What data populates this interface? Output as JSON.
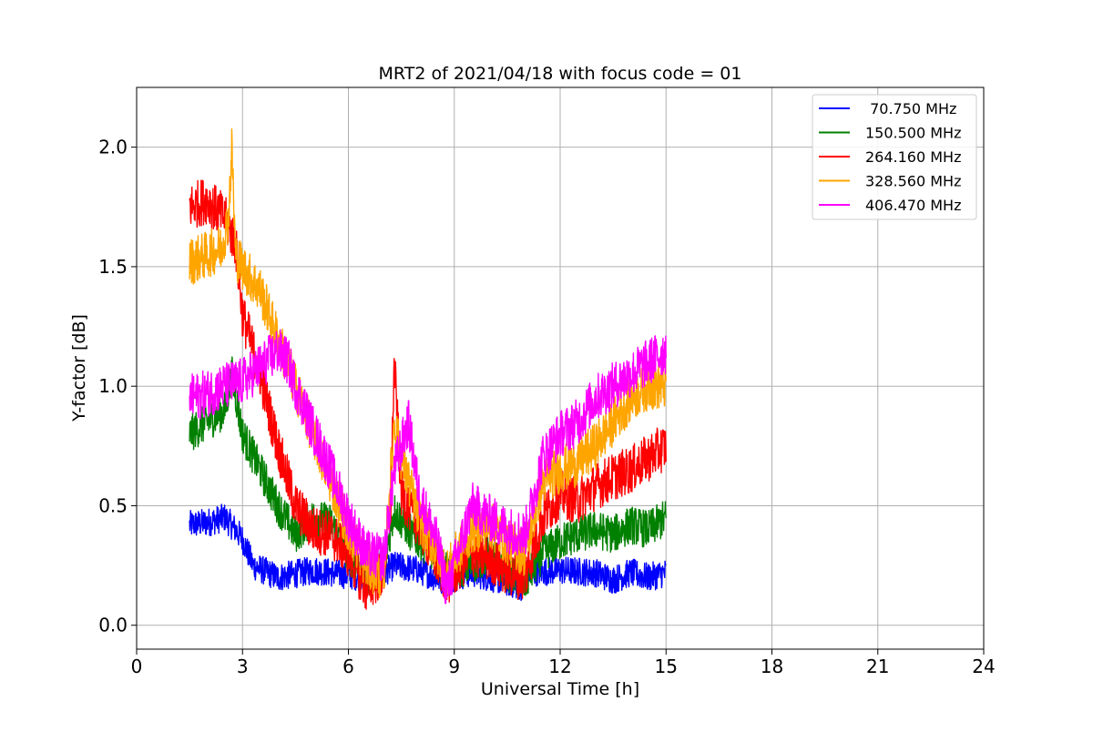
{
  "chart_data": {
    "type": "line",
    "title": "MRT2 of 2021/04/18 with focus code = 01",
    "xlabel": "Universal Time [h]",
    "ylabel": "Y-factor [dB]",
    "xlim": [
      0,
      24
    ],
    "ylim": [
      -0.1,
      2.25
    ],
    "xticks": [
      0,
      3,
      6,
      9,
      12,
      15,
      18,
      21,
      24
    ],
    "yticks": [
      0.0,
      0.5,
      1.0,
      1.5,
      2.0
    ],
    "ytick_labels": [
      "0.0",
      "0.5",
      "1.0",
      "1.5",
      "2.0"
    ],
    "grid": true,
    "legend_position": "top-right",
    "series": [
      {
        "name": " 70.750 MHz",
        "color": "#0000ff",
        "noise": 0.06,
        "x": [
          1.5,
          2.0,
          2.5,
          2.8,
          3.0,
          3.3,
          4.0,
          5.0,
          6.0,
          6.5,
          7.0,
          7.3,
          8.0,
          8.8,
          9.0,
          9.5,
          10.0,
          10.5,
          10.9,
          11.0,
          12.0,
          13.0,
          13.5,
          14.0,
          14.5,
          15.0
        ],
        "y": [
          0.42,
          0.43,
          0.45,
          0.4,
          0.36,
          0.25,
          0.2,
          0.23,
          0.21,
          0.2,
          0.22,
          0.25,
          0.23,
          0.18,
          0.2,
          0.22,
          0.2,
          0.18,
          0.16,
          0.22,
          0.23,
          0.22,
          0.19,
          0.22,
          0.2,
          0.22
        ]
      },
      {
        "name": "150.500 MHz",
        "color": "#008000",
        "noise": 0.08,
        "x": [
          1.5,
          2.0,
          2.5,
          2.7,
          3.0,
          3.5,
          4.0,
          4.5,
          5.0,
          5.5,
          6.0,
          6.5,
          7.0,
          7.3,
          7.8,
          8.3,
          8.8,
          9.5,
          10.0,
          10.5,
          11.0,
          11.5,
          12.0,
          12.5,
          13.0,
          13.5,
          14.0,
          14.5,
          15.0
        ],
        "y": [
          0.8,
          0.85,
          0.9,
          1.05,
          0.8,
          0.65,
          0.5,
          0.38,
          0.45,
          0.43,
          0.3,
          0.2,
          0.25,
          0.48,
          0.38,
          0.32,
          0.22,
          0.25,
          0.3,
          0.22,
          0.18,
          0.3,
          0.35,
          0.38,
          0.4,
          0.38,
          0.42,
          0.4,
          0.45
        ]
      },
      {
        "name": "264.160 MHz",
        "color": "#ff0000",
        "noise": 0.1,
        "x": [
          1.5,
          2.0,
          2.5,
          2.8,
          3.0,
          3.5,
          4.0,
          4.5,
          5.0,
          5.5,
          6.0,
          6.5,
          7.0,
          7.2,
          7.3,
          7.5,
          8.0,
          8.8,
          9.0,
          9.5,
          10.0,
          10.5,
          11.0,
          11.5,
          12.0,
          12.5,
          13.0,
          13.5,
          14.0,
          14.5,
          15.0
        ],
        "y": [
          1.75,
          1.78,
          1.7,
          1.6,
          1.3,
          1.05,
          0.75,
          0.5,
          0.4,
          0.38,
          0.3,
          0.15,
          0.22,
          0.5,
          1.1,
          0.55,
          0.42,
          0.18,
          0.22,
          0.3,
          0.28,
          0.22,
          0.2,
          0.45,
          0.55,
          0.52,
          0.58,
          0.62,
          0.65,
          0.7,
          0.75
        ]
      },
      {
        "name": "328.560 MHz",
        "color": "#ffa500",
        "noise": 0.1,
        "x": [
          1.5,
          2.0,
          2.4,
          2.6,
          2.7,
          2.8,
          3.0,
          3.5,
          4.0,
          4.5,
          5.0,
          5.5,
          6.0,
          6.5,
          7.0,
          7.3,
          7.5,
          8.0,
          8.8,
          9.0,
          9.5,
          10.0,
          10.5,
          11.0,
          11.5,
          12.0,
          12.5,
          13.0,
          13.5,
          14.0,
          14.5,
          15.0
        ],
        "y": [
          1.52,
          1.55,
          1.58,
          1.7,
          2.0,
          1.55,
          1.5,
          1.4,
          1.2,
          1.0,
          0.8,
          0.6,
          0.4,
          0.25,
          0.2,
          0.85,
          0.7,
          0.45,
          0.22,
          0.28,
          0.4,
          0.42,
          0.35,
          0.3,
          0.6,
          0.65,
          0.68,
          0.75,
          0.85,
          0.95,
          1.0,
          1.0
        ]
      },
      {
        "name": "406.470 MHz",
        "color": "#ff00ff",
        "noise": 0.1,
        "x": [
          1.5,
          2.0,
          2.5,
          3.0,
          3.5,
          4.0,
          4.3,
          4.5,
          5.0,
          5.5,
          6.0,
          6.5,
          7.0,
          7.3,
          7.7,
          8.0,
          8.5,
          8.8,
          9.0,
          9.5,
          10.0,
          10.5,
          11.0,
          11.5,
          12.0,
          12.5,
          13.0,
          13.5,
          14.0,
          14.5,
          15.0
        ],
        "y": [
          0.95,
          0.97,
          1.0,
          1.02,
          1.08,
          1.15,
          1.1,
          1.0,
          0.82,
          0.65,
          0.45,
          0.3,
          0.28,
          0.65,
          0.85,
          0.55,
          0.35,
          0.15,
          0.25,
          0.5,
          0.45,
          0.4,
          0.38,
          0.7,
          0.8,
          0.85,
          0.95,
          1.0,
          1.05,
          1.1,
          1.15
        ]
      }
    ]
  }
}
